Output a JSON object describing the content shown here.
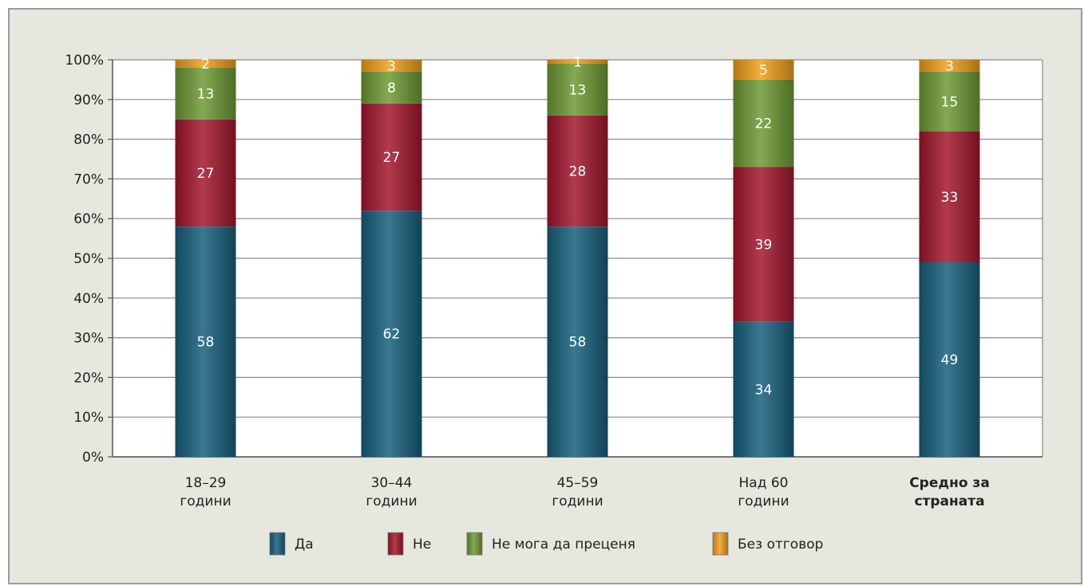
{
  "chart_data": {
    "type": "bar",
    "stacked": true,
    "categories": [
      [
        "18–29",
        "години"
      ],
      [
        "30–44",
        "години"
      ],
      [
        "45–59",
        "години"
      ],
      [
        "Над 60",
        "години"
      ],
      [
        "Средно за",
        "страната"
      ]
    ],
    "bold_categories": [
      4
    ],
    "series": [
      {
        "name": "Да",
        "values": [
          58,
          62,
          58,
          34,
          49
        ],
        "color": "#17607e"
      },
      {
        "name": "Не",
        "values": [
          27,
          27,
          28,
          39,
          33
        ],
        "color": "#a4172f"
      },
      {
        "name": "Не мога да преценя",
        "values": [
          13,
          8,
          13,
          22,
          15
        ],
        "color": "#6f9a35"
      },
      {
        "name": "Без отговор",
        "values": [
          2,
          3,
          1,
          5,
          3
        ],
        "color": "#f0a01c"
      }
    ],
    "ylim": [
      0,
      100
    ],
    "yticks": [
      "0%",
      "10%",
      "20%",
      "30%",
      "40%",
      "50%",
      "60%",
      "70%",
      "80%",
      "90%",
      "100%"
    ],
    "grid": true,
    "legend_position": "bottom"
  }
}
